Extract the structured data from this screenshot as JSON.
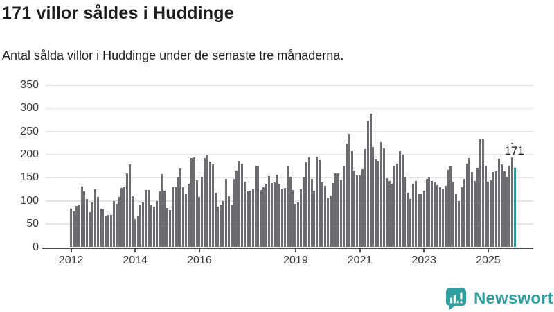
{
  "header": {
    "title": "171 villor såldes i Huddinge",
    "subtitle": "Antal sålda villor i Huddinge under de senaste tre månaderna."
  },
  "chart_data": {
    "type": "bar",
    "title": "171 villor såldes i Huddinge",
    "x_start": "2012-01",
    "x_end": "2025-11",
    "x_unit": "month",
    "ylim": [
      0,
      350
    ],
    "grid": true,
    "y_ticks": [
      0,
      50,
      100,
      150,
      200,
      250,
      300,
      350
    ],
    "x_ticks": [
      {
        "label": "2012",
        "month_index": 0
      },
      {
        "label": "2014",
        "month_index": 24
      },
      {
        "label": "2016",
        "month_index": 48
      },
      {
        "label": "2019",
        "month_index": 84
      },
      {
        "label": "2021",
        "month_index": 108
      },
      {
        "label": "2023",
        "month_index": 132
      },
      {
        "label": "2025",
        "month_index": 156
      }
    ],
    "values": [
      83,
      77,
      89,
      90,
      131,
      121,
      104,
      75,
      97,
      125,
      108,
      83,
      81,
      66,
      69,
      70,
      100,
      93,
      108,
      128,
      130,
      160,
      179,
      110,
      60,
      67,
      90,
      96,
      124,
      124,
      90,
      88,
      100,
      121,
      158,
      122,
      84,
      80,
      129,
      130,
      152,
      170,
      130,
      115,
      137,
      192,
      194,
      145,
      108,
      152,
      192,
      199,
      185,
      179,
      117,
      87,
      91,
      100,
      147,
      110,
      90,
      147,
      165,
      186,
      180,
      142,
      120,
      122,
      127,
      176,
      176,
      123,
      130,
      137,
      154,
      138,
      140,
      157,
      137,
      127,
      128,
      174,
      152,
      123,
      93,
      96,
      125,
      151,
      183,
      194,
      147,
      122,
      196,
      188,
      140,
      132,
      106,
      111,
      138,
      160,
      160,
      145,
      175,
      224,
      245,
      207,
      166,
      155,
      155,
      169,
      212,
      273,
      289,
      216,
      190,
      186,
      227,
      213,
      149,
      143,
      137,
      176,
      180,
      207,
      200,
      152,
      117,
      104,
      137,
      143,
      115,
      114,
      122,
      148,
      150,
      143,
      140,
      134,
      130,
      127,
      132,
      167,
      174,
      142,
      114,
      100,
      130,
      147,
      181,
      193,
      162,
      143,
      171,
      233,
      235,
      176,
      142,
      145,
      162,
      164,
      191,
      179,
      164,
      152,
      176,
      225,
      171
    ],
    "highlight_index": 166,
    "annotation": {
      "text": "171",
      "month_index": 166
    },
    "legend": "none",
    "colors": {
      "bar": "#6b6b70",
      "highlight": "#1b9e9e",
      "gridline": "#e4e4e4",
      "axis": "#4c4c4f",
      "tick_label": "#3c3c3c"
    }
  },
  "footer": {
    "brand": "Newsworthy",
    "brand_color": "#2f9e9e",
    "logo_icon": "newsworthy-speech-bubble-chart-icon"
  }
}
